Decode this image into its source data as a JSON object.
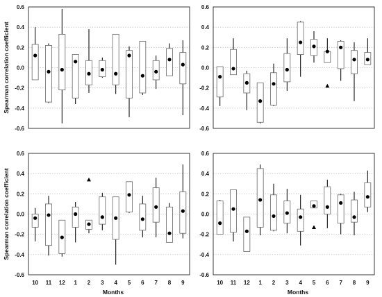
{
  "chart_data": [
    {
      "type": "box",
      "title": "",
      "xlabel": "",
      "ylabel": "Spearman correlation coefficient",
      "categories": [
        "10",
        "11",
        "12",
        "1",
        "2",
        "3",
        "4",
        "5",
        "6",
        "7",
        "8",
        "9"
      ],
      "ylim": [
        -0.6,
        0.6
      ],
      "yticks": [
        "0.6",
        "0.4",
        "0.2",
        "0.0",
        "-0.2",
        "-0.4",
        "-0.6"
      ],
      "show_xticklabels": false,
      "grid": "horizontal-dotted",
      "boxes": [
        {
          "q1": -0.12,
          "q3": 0.23,
          "wlo": -0.12,
          "whi": 0.4,
          "mean": 0.12
        },
        {
          "q1": -0.34,
          "q3": 0.22,
          "wlo": -0.35,
          "whi": 0.24,
          "mean": -0.04
        },
        {
          "q1": -0.22,
          "q3": 0.33,
          "wlo": -0.55,
          "whi": 0.58,
          "mean": -0.02
        },
        {
          "q1": -0.3,
          "q3": 0.13,
          "wlo": -0.36,
          "whi": 0.13,
          "mean": 0.06
        },
        {
          "q1": -0.17,
          "q3": 0.07,
          "wlo": -0.25,
          "whi": 0.38,
          "mean": -0.06
        },
        {
          "q1": -0.09,
          "q3": 0.07,
          "wlo": -0.1,
          "whi": 0.1,
          "mean": -0.02
        },
        {
          "q1": -0.17,
          "q3": 0.33,
          "wlo": -0.26,
          "whi": 0.33,
          "mean": -0.06
        },
        {
          "q1": -0.3,
          "q3": 0.17,
          "wlo": -0.49,
          "whi": 0.21,
          "mean": 0.12
        },
        {
          "q1": -0.25,
          "q3": 0.26,
          "wlo": -0.27,
          "whi": 0.26,
          "mean": -0.08
        },
        {
          "q1": -0.12,
          "q3": 0.07,
          "wlo": -0.21,
          "whi": 0.12,
          "mean": -0.04
        },
        {
          "q1": -0.08,
          "q3": 0.19,
          "wlo": -0.08,
          "whi": 0.24,
          "mean": 0.08
        },
        {
          "q1": -0.16,
          "q3": 0.15,
          "wlo": -0.47,
          "whi": 0.27,
          "mean": 0.03
        }
      ],
      "outliers": []
    },
    {
      "type": "box",
      "title": "",
      "xlabel": "",
      "ylabel": "",
      "categories": [
        "10",
        "11",
        "12",
        "1",
        "2",
        "3",
        "4",
        "5",
        "6",
        "7",
        "8",
        "9"
      ],
      "ylim": [
        -0.6,
        0.6
      ],
      "yticks": [
        "0.6",
        "0.4",
        "0.2",
        "0.0",
        "-0.2",
        "-0.4",
        "-0.6"
      ],
      "show_xticklabels": false,
      "grid": "horizontal-dotted",
      "boxes": [
        {
          "q1": -0.29,
          "q3": 0.01,
          "wlo": -0.38,
          "whi": 0.01,
          "mean": -0.09
        },
        {
          "q1": -0.07,
          "q3": 0.18,
          "wlo": -0.07,
          "whi": 0.29,
          "mean": -0.01
        },
        {
          "q1": -0.25,
          "q3": -0.06,
          "wlo": -0.42,
          "whi": -0.03,
          "mean": -0.15
        },
        {
          "q1": -0.54,
          "q3": -0.15,
          "wlo": -0.55,
          "whi": -0.15,
          "mean": -0.33
        },
        {
          "q1": -0.37,
          "q3": -0.05,
          "wlo": -0.38,
          "whi": 0.04,
          "mean": -0.16
        },
        {
          "q1": -0.14,
          "q3": 0.14,
          "wlo": -0.23,
          "whi": 0.29,
          "mean": -0.02
        },
        {
          "q1": 0.13,
          "q3": 0.45,
          "wlo": -0.09,
          "whi": 0.46,
          "mean": 0.25
        },
        {
          "q1": 0.12,
          "q3": 0.28,
          "wlo": 0.05,
          "whi": 0.36,
          "mean": 0.21
        },
        {
          "q1": 0.05,
          "q3": 0.16,
          "wlo": 0.05,
          "whi": 0.29,
          "mean": 0.16
        },
        {
          "q1": -0.01,
          "q3": 0.26,
          "wlo": -0.13,
          "whi": 0.27,
          "mean": 0.2
        },
        {
          "q1": -0.06,
          "q3": 0.17,
          "wlo": -0.33,
          "whi": 0.25,
          "mean": 0.08
        },
        {
          "q1": 0.03,
          "q3": 0.15,
          "wlo": 0.03,
          "whi": 0.29,
          "mean": 0.08
        }
      ],
      "outliers": [
        {
          "category": "6",
          "value": -0.18
        }
      ]
    },
    {
      "type": "box",
      "title": "",
      "xlabel": "Months",
      "ylabel": "Spearman correlation coefficient",
      "categories": [
        "10",
        "11",
        "12",
        "1",
        "2",
        "3",
        "4",
        "5",
        "6",
        "7",
        "8",
        "9"
      ],
      "ylim": [
        -0.6,
        0.6
      ],
      "yticks": [
        "0.6",
        "0.4",
        "0.2",
        "0.0",
        "-0.2",
        "-0.4",
        "-0.6"
      ],
      "show_xticklabels": true,
      "grid": "horizontal-dotted",
      "boxes": [
        {
          "q1": -0.13,
          "q3": 0.0,
          "wlo": -0.27,
          "whi": 0.06,
          "mean": -0.04
        },
        {
          "q1": -0.31,
          "q3": 0.1,
          "wlo": -0.41,
          "whi": 0.18,
          "mean": -0.01
        },
        {
          "q1": -0.39,
          "q3": -0.06,
          "wlo": -0.42,
          "whi": -0.06,
          "mean": -0.23
        },
        {
          "q1": -0.13,
          "q3": 0.07,
          "wlo": -0.28,
          "whi": 0.12,
          "mean": 0.0
        },
        {
          "q1": -0.15,
          "q3": -0.06,
          "wlo": -0.19,
          "whi": -0.06,
          "mean": -0.1
        },
        {
          "q1": -0.1,
          "q3": 0.17,
          "wlo": -0.16,
          "whi": 0.21,
          "mean": -0.03
        },
        {
          "q1": -0.25,
          "q3": 0.17,
          "wlo": -0.5,
          "whi": 0.17,
          "mean": -0.04
        },
        {
          "q1": 0.02,
          "q3": 0.32,
          "wlo": 0.01,
          "whi": 0.32,
          "mean": 0.19
        },
        {
          "q1": -0.16,
          "q3": 0.1,
          "wlo": -0.23,
          "whi": 0.18,
          "mean": -0.05
        },
        {
          "q1": -0.08,
          "q3": 0.26,
          "wlo": -0.23,
          "whi": 0.36,
          "mean": 0.07
        },
        {
          "q1": -0.28,
          "q3": 0.07,
          "wlo": -0.28,
          "whi": 0.11,
          "mean": -0.19
        },
        {
          "q1": -0.19,
          "q3": 0.22,
          "wlo": -0.24,
          "whi": 0.49,
          "mean": 0.03
        }
      ],
      "outliers": [
        {
          "category": "2",
          "value": 0.34
        }
      ]
    },
    {
      "type": "box",
      "title": "",
      "xlabel": "Months",
      "ylabel": "",
      "categories": [
        "10",
        "11",
        "12",
        "1",
        "2",
        "3",
        "4",
        "5",
        "6",
        "7",
        "8",
        "9"
      ],
      "ylim": [
        -0.6,
        0.6
      ],
      "yticks": [
        "0.6",
        "0.4",
        "0.2",
        "0.0",
        "-0.2",
        "-0.4",
        "-0.6"
      ],
      "show_xticklabels": true,
      "grid": "horizontal-dotted",
      "boxes": [
        {
          "q1": -0.2,
          "q3": 0.13,
          "wlo": -0.2,
          "whi": 0.14,
          "mean": -0.09
        },
        {
          "q1": -0.18,
          "q3": 0.24,
          "wlo": -0.27,
          "whi": 0.24,
          "mean": 0.05
        },
        {
          "q1": -0.37,
          "q3": -0.03,
          "wlo": -0.37,
          "whi": -0.03,
          "mean": -0.17
        },
        {
          "q1": -0.13,
          "q3": 0.45,
          "wlo": -0.21,
          "whi": 0.49,
          "mean": 0.14
        },
        {
          "q1": -0.16,
          "q3": 0.19,
          "wlo": -0.17,
          "whi": 0.3,
          "mean": -0.02
        },
        {
          "q1": -0.09,
          "q3": 0.13,
          "wlo": -0.19,
          "whi": 0.25,
          "mean": 0.01
        },
        {
          "q1": -0.17,
          "q3": 0.05,
          "wlo": -0.31,
          "whi": 0.19,
          "mean": -0.03
        },
        {
          "q1": 0.06,
          "q3": 0.13,
          "wlo": 0.06,
          "whi": 0.13,
          "mean": 0.08
        },
        {
          "q1": 0.0,
          "q3": 0.27,
          "wlo": -0.14,
          "whi": 0.34,
          "mean": 0.07
        },
        {
          "q1": -0.09,
          "q3": 0.19,
          "wlo": -0.2,
          "whi": 0.2,
          "mean": 0.11
        },
        {
          "q1": -0.08,
          "q3": 0.14,
          "wlo": -0.21,
          "whi": 0.22,
          "mean": -0.03
        },
        {
          "q1": 0.07,
          "q3": 0.31,
          "wlo": 0.02,
          "whi": 0.43,
          "mean": 0.17
        }
      ],
      "outliers": [
        {
          "category": "5",
          "value": -0.13
        }
      ]
    }
  ]
}
